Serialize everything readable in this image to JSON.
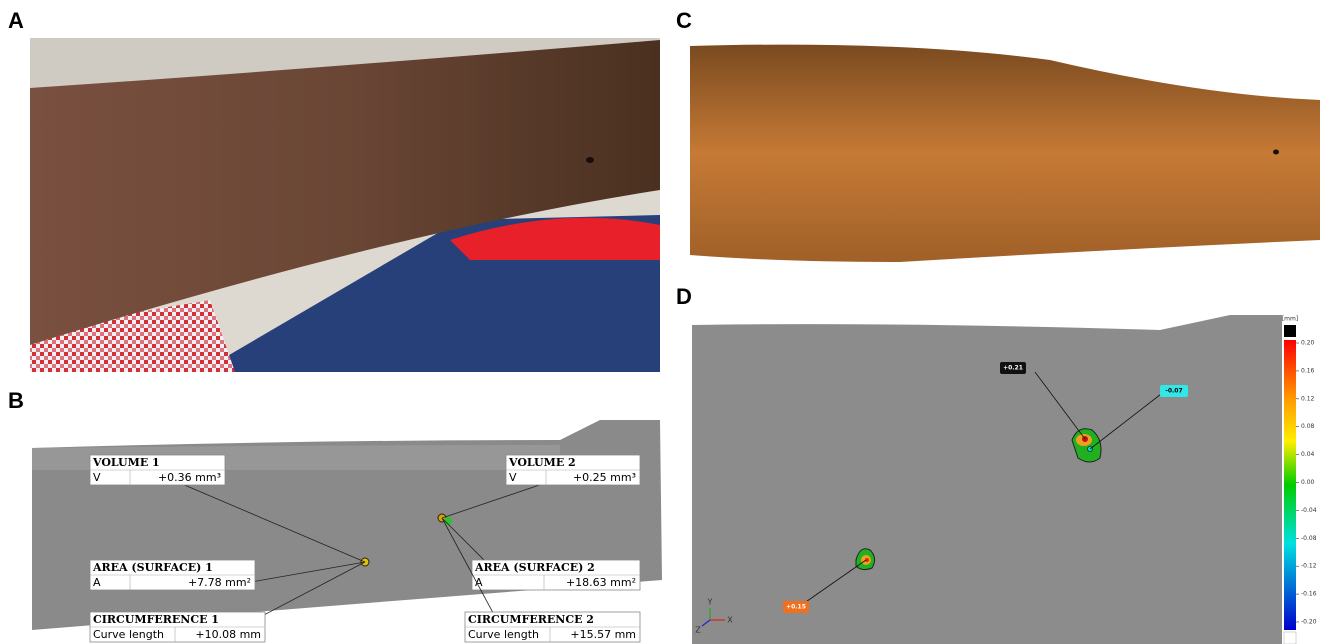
{
  "panel_labels": [
    "A",
    "B",
    "C",
    "D"
  ],
  "panel_b": {
    "callouts": [
      {
        "title": "VOLUME 1",
        "key": "V",
        "value": "+0.36 mm³"
      },
      {
        "title": "VOLUME 2",
        "key": "V",
        "value": "+0.25 mm³"
      },
      {
        "title": "AREA (SURFACE) 1",
        "key": "A",
        "value": "+7.78 mm²"
      },
      {
        "title": "AREA (SURFACE) 2",
        "key": "A",
        "value": "+18.63 mm²"
      },
      {
        "title": "CIRCUMFERENCE 1",
        "key": "Curve length",
        "value": "+10.08 mm"
      },
      {
        "title": "CIRCUMFERENCE 2",
        "key": "Curve length",
        "value": "+15.57 mm"
      }
    ]
  },
  "panel_d": {
    "labels": [
      "+0.21",
      "-0.07",
      "+0.15"
    ],
    "colorbar": {
      "unit": "[mm]",
      "ticks": [
        "0.20",
        "0.16",
        "0.12",
        "0.08",
        "0.04",
        "0.00",
        "-0.04",
        "-0.08",
        "-0.12",
        "-0.16",
        "-0.20"
      ]
    },
    "axes": [
      "Y",
      "X",
      "Z"
    ]
  }
}
